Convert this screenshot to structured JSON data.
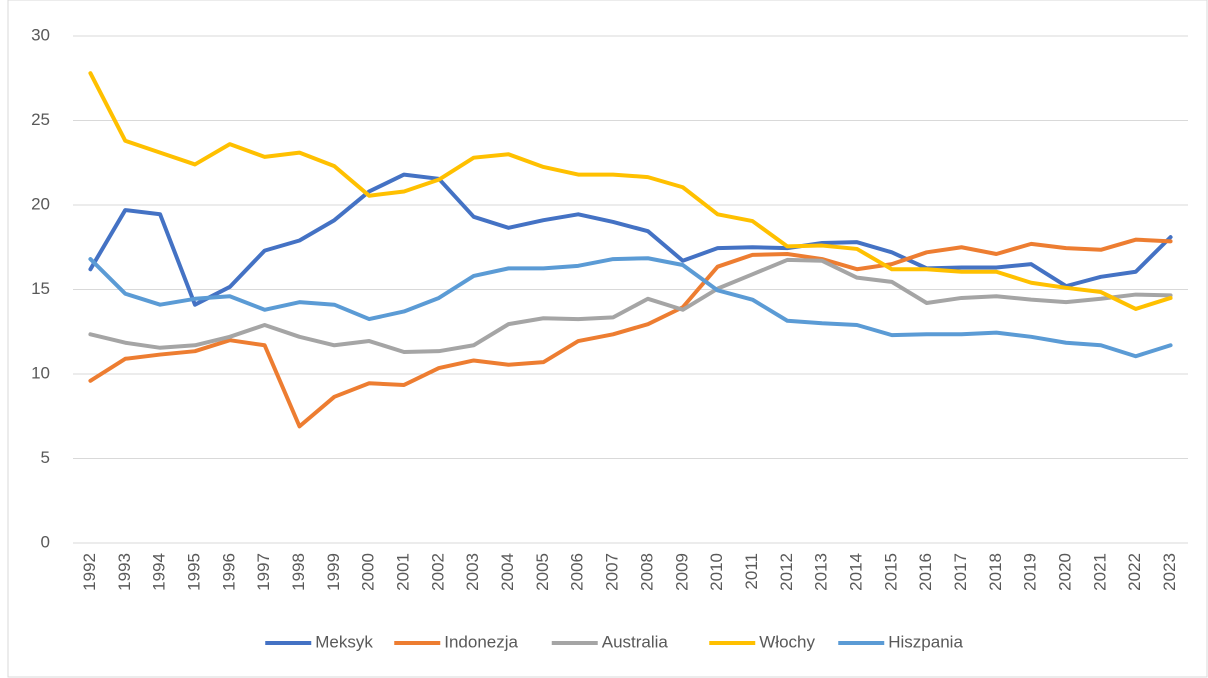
{
  "chart_data": {
    "type": "line",
    "categories": [
      "1992",
      "1993",
      "1994",
      "1995",
      "1996",
      "1997",
      "1998",
      "1999",
      "2000",
      "2001",
      "2002",
      "2003",
      "2004",
      "2005",
      "2006",
      "2007",
      "2008",
      "2009",
      "2010",
      "2011",
      "2012",
      "2013",
      "2014",
      "2015",
      "2016",
      "2017",
      "2018",
      "2019",
      "2020",
      "2021",
      "2022",
      "2023"
    ],
    "series": [
      {
        "name": "Meksyk",
        "color": "#4472c4",
        "values": [
          16.2,
          19.7,
          19.45,
          14.1,
          15.15,
          17.3,
          17.9,
          19.1,
          20.8,
          21.8,
          21.55,
          19.3,
          18.65,
          19.1,
          19.45,
          19.0,
          18.45,
          16.7,
          17.45,
          17.5,
          17.45,
          17.75,
          17.8,
          17.2,
          16.25,
          16.3,
          16.3,
          16.5,
          15.2,
          15.75,
          16.05,
          18.1
        ]
      },
      {
        "name": "Indonezja",
        "color": "#ed7d31",
        "values": [
          9.6,
          10.9,
          11.15,
          11.35,
          12.0,
          11.7,
          6.9,
          8.65,
          9.45,
          9.35,
          10.35,
          10.8,
          10.55,
          10.7,
          11.95,
          12.35,
          12.95,
          13.95,
          16.35,
          17.05,
          17.1,
          16.8,
          16.2,
          16.5,
          17.2,
          17.5,
          17.1,
          17.7,
          17.45,
          17.35,
          17.95,
          17.85
        ]
      },
      {
        "name": "Australia",
        "color": "#a5a5a5",
        "values": [
          12.35,
          11.85,
          11.55,
          11.7,
          12.2,
          12.9,
          12.2,
          11.7,
          11.95,
          11.3,
          11.35,
          11.7,
          12.95,
          13.3,
          13.25,
          13.35,
          14.45,
          13.8,
          15.05,
          15.9,
          16.75,
          16.7,
          15.7,
          15.45,
          14.2,
          14.5,
          14.6,
          14.4,
          14.25,
          14.45,
          14.7,
          14.65
        ]
      },
      {
        "name": "Włochy",
        "color": "#ffc000",
        "values": [
          27.8,
          23.8,
          23.1,
          22.4,
          23.6,
          22.85,
          23.1,
          22.3,
          20.55,
          20.8,
          21.5,
          22.8,
          23.0,
          22.25,
          21.8,
          21.8,
          21.65,
          21.05,
          19.45,
          19.05,
          17.55,
          17.6,
          17.4,
          16.2,
          16.2,
          16.05,
          16.05,
          15.4,
          15.1,
          14.85,
          13.85,
          14.5
        ]
      },
      {
        "name": "Hiszpania",
        "color": "#5b9bd5",
        "values": [
          16.8,
          14.75,
          14.1,
          14.45,
          14.6,
          13.8,
          14.25,
          14.1,
          13.25,
          13.7,
          14.5,
          15.8,
          16.25,
          16.25,
          16.4,
          16.8,
          16.85,
          16.45,
          14.95,
          14.4,
          13.15,
          13.0,
          12.9,
          12.3,
          12.35,
          12.35,
          12.45,
          12.2,
          11.85,
          11.7,
          11.05,
          11.7
        ]
      }
    ],
    "ylim": [
      0,
      30
    ],
    "yticks": [
      0,
      5,
      10,
      15,
      20,
      25,
      30
    ],
    "grid": true,
    "legend": "bottom"
  }
}
